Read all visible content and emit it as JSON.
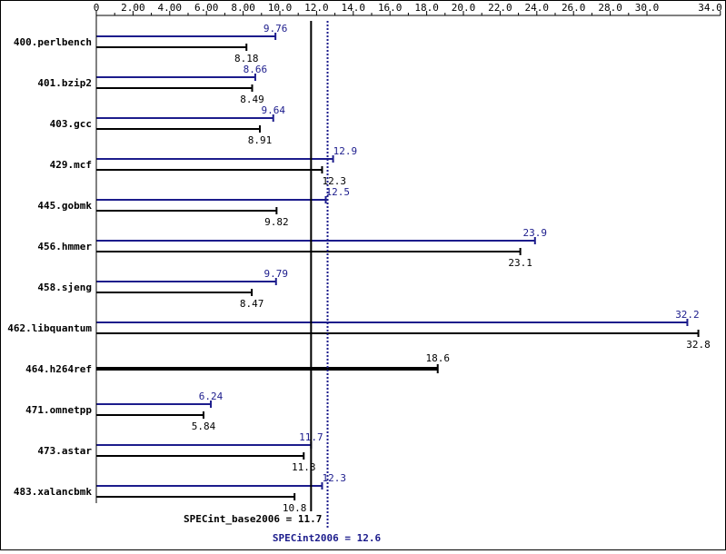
{
  "chart_data": {
    "type": "bar",
    "orientation": "horizontal",
    "xlim": [
      0,
      34.0
    ],
    "x_ticks": [
      "0",
      "2.00",
      "4.00",
      "6.00",
      "8.00",
      "10.0",
      "12.0",
      "14.0",
      "16.0",
      "18.0",
      "20.0",
      "22.0",
      "24.0",
      "26.0",
      "28.0",
      "30.0",
      "34.0"
    ],
    "x_tick_values": [
      0,
      2,
      4,
      6,
      8,
      10,
      12,
      14,
      16,
      18,
      20,
      22,
      24,
      26,
      28,
      30,
      34
    ],
    "categories": [
      "400.perlbench",
      "401.bzip2",
      "403.gcc",
      "429.mcf",
      "445.gobmk",
      "456.hmmer",
      "458.sjeng",
      "462.libquantum",
      "464.h264ref",
      "471.omnetpp",
      "473.astar",
      "483.xalancbmk"
    ],
    "series": [
      {
        "name": "peak",
        "color": "#1c1c8c",
        "values": [
          9.76,
          8.66,
          9.64,
          12.9,
          12.5,
          23.9,
          9.79,
          32.2,
          null,
          6.24,
          11.7,
          12.3
        ],
        "labels": [
          "9.76",
          "8.66",
          "9.64",
          "12.9",
          "12.5",
          "23.9",
          "9.79",
          "32.2",
          "",
          "6.24",
          "11.7",
          "12.3"
        ]
      },
      {
        "name": "base",
        "color": "#000000",
        "values": [
          8.18,
          8.49,
          8.91,
          12.3,
          9.82,
          23.1,
          8.47,
          32.8,
          18.6,
          5.84,
          11.3,
          10.8
        ],
        "labels": [
          "8.18",
          "8.49",
          "8.91",
          "12.3",
          "9.82",
          "23.1",
          "8.47",
          "32.8",
          "18.6",
          "5.84",
          "11.3",
          "10.8"
        ]
      }
    ],
    "summary": {
      "base_value": 11.7,
      "base_label": "SPECint_base2006 = 11.7",
      "peak_value": 12.6,
      "peak_label": "SPECint2006 = 12.6"
    },
    "grid": false,
    "legend": "none"
  }
}
